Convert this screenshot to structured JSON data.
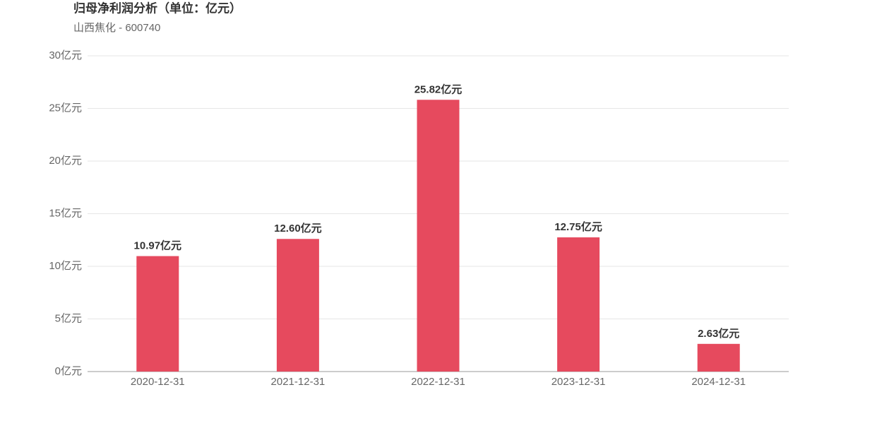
{
  "chart_data": {
    "type": "bar",
    "title": "归母净利润分析（单位：亿元）",
    "subtitle": "山西焦化 - 600740",
    "categories": [
      "2020-12-31",
      "2021-12-31",
      "2022-12-31",
      "2023-12-31",
      "2024-12-31"
    ],
    "values": [
      10.97,
      12.6,
      25.82,
      12.75,
      2.63
    ],
    "value_labels": [
      "10.97亿元",
      "12.60亿元",
      "25.82亿元",
      "12.75亿元",
      "2.63亿元"
    ],
    "color": "#e64a5e",
    "ylim": [
      0,
      30
    ],
    "yticks": [
      {
        "value": 0,
        "label": "0亿元"
      },
      {
        "value": 5,
        "label": "5亿元"
      },
      {
        "value": 10,
        "label": "10亿元"
      },
      {
        "value": 15,
        "label": "15亿元"
      },
      {
        "value": 20,
        "label": "20亿元"
      },
      {
        "value": 25,
        "label": "25亿元"
      },
      {
        "value": 30,
        "label": "30亿元"
      }
    ],
    "grid": true
  }
}
